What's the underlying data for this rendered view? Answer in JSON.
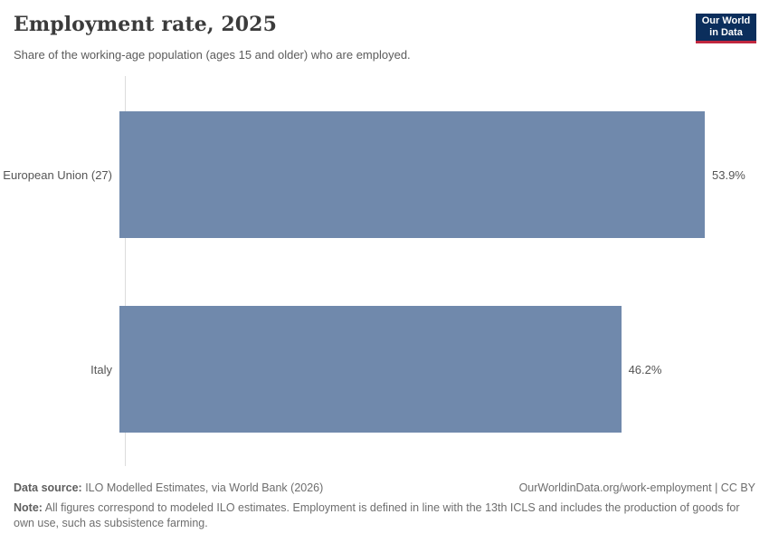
{
  "header": {
    "title": "Employment rate, 2025",
    "subtitle": "Share of the working-age population (ages 15 and older) who are employed.",
    "logo": {
      "line1": "Our World",
      "line2": "in Data",
      "bg_color": "#0b2e5c",
      "accent_color": "#c0273f"
    }
  },
  "chart_data": {
    "type": "bar",
    "orientation": "horizontal",
    "title": "Employment rate, 2025",
    "xlabel": "",
    "ylabel": "",
    "xlim": [
      0,
      53.9
    ],
    "grid": false,
    "legend": false,
    "categories": [
      "European Union (27)",
      "Italy"
    ],
    "values": [
      53.9,
      46.2
    ],
    "value_labels": [
      "53.9%",
      "46.2%"
    ],
    "bar_color": "#7089ac"
  },
  "footer": {
    "datasource_label": "Data source:",
    "datasource_text": " ILO Modelled Estimates, via World Bank (2026)",
    "link_text": "OurWorldinData.org/work-employment | CC BY",
    "note_label": "Note:",
    "note_text": " All figures correspond to modeled ILO estimates. Employment is defined in line with the 13th ICLS and includes the production of goods for own use, such as subsistence farming."
  }
}
